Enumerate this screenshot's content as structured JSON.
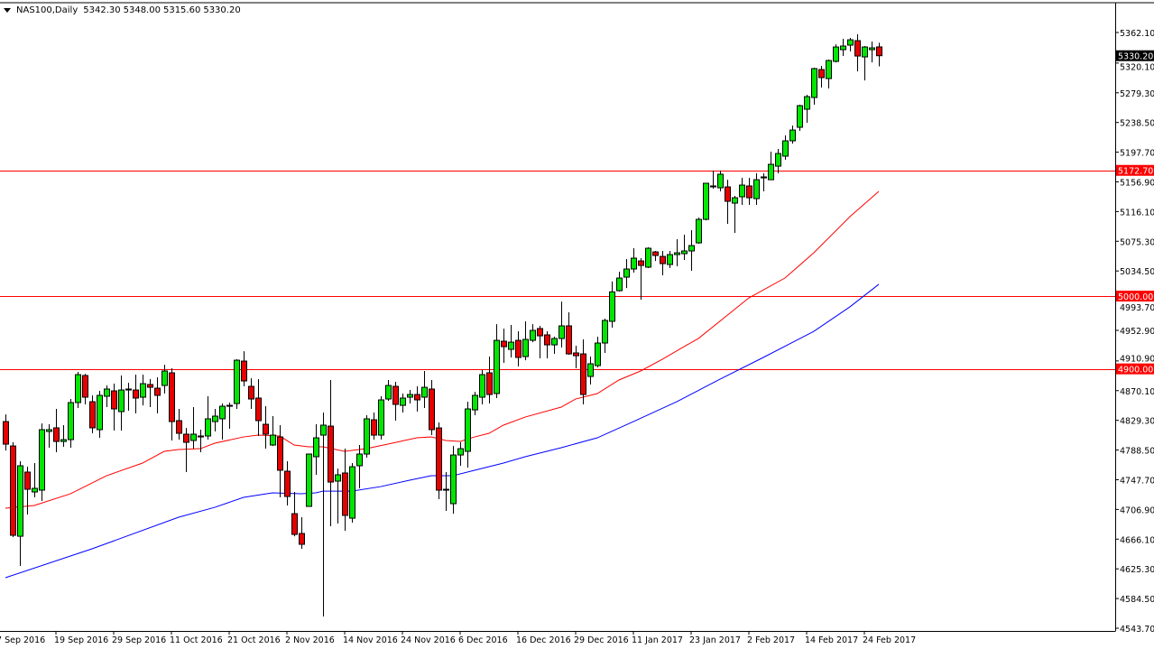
{
  "header": {
    "symbol_timeframe": "NAS100,Daily",
    "open": "5342.30",
    "high": "5348.00",
    "low": "5315.60",
    "close": "5330.20"
  },
  "colors": {
    "bull": "#00e600",
    "bear": "#e60000",
    "ma_fast": "#ff0000",
    "ma_slow": "#0000ff",
    "hline": "#ff0000",
    "price_label_bg": "#000000"
  },
  "chart_data": {
    "type": "candlestick",
    "title": "NAS100,Daily",
    "ylim": [
      4543.7,
      5362.1
    ],
    "y_ticks": [
      "5362.10",
      "5320.10",
      "5279.30",
      "5238.50",
      "5197.70",
      "5156.90",
      "5116.10",
      "5075.30",
      "5034.50",
      "4993.70",
      "4952.90",
      "4910.90",
      "4870.10",
      "4829.30",
      "4788.50",
      "4747.70",
      "4706.90",
      "4666.10",
      "4625.30",
      "4584.50",
      "4543.70"
    ],
    "x_ticks": [
      {
        "bar": -1,
        "label": "7 Sep 2016"
      },
      {
        "bar": 7,
        "label": "19 Sep 2016"
      },
      {
        "bar": 15,
        "label": "29 Sep 2016"
      },
      {
        "bar": 23,
        "label": "11 Oct 2016"
      },
      {
        "bar": 31,
        "label": "21 Oct 2016"
      },
      {
        "bar": 39,
        "label": "2 Nov 2016"
      },
      {
        "bar": 47,
        "label": "14 Nov 2016"
      },
      {
        "bar": 55,
        "label": "24 Nov 2016"
      },
      {
        "bar": 63,
        "label": "6 Dec 2016"
      },
      {
        "bar": 71,
        "label": "16 Dec 2016"
      },
      {
        "bar": 79,
        "label": "29 Dec 2016"
      },
      {
        "bar": 87,
        "label": "11 Jan 2017"
      },
      {
        "bar": 95,
        "label": "23 Jan 2017"
      },
      {
        "bar": 103,
        "label": "2 Feb 2017"
      },
      {
        "bar": 111,
        "label": "14 Feb 2017"
      },
      {
        "bar": 119,
        "label": "24 Feb 2017"
      }
    ],
    "ohlc_fields": [
      "open",
      "high",
      "low",
      "close"
    ],
    "candles": [
      [
        4827.6,
        4837.5,
        4787.9,
        4796.6
      ],
      [
        4794.1,
        4799.1,
        4668.9,
        4671.4
      ],
      [
        4670.1,
        4773.1,
        4629.2,
        4766.9
      ],
      [
        4758.2,
        4765.6,
        4699.9,
        4734.6
      ],
      [
        4730.9,
        4770.6,
        4723.5,
        4735.9
      ],
      [
        4733.4,
        4825.1,
        4718.5,
        4816.5
      ],
      [
        4814.0,
        4823.9,
        4791.7,
        4816.5
      ],
      [
        4819.0,
        4845.0,
        4785.5,
        4800.3
      ],
      [
        4800.3,
        4822.7,
        4792.9,
        4802.8
      ],
      [
        4802.8,
        4858.6,
        4791.7,
        4853.7
      ],
      [
        4853.7,
        4895.8,
        4846.2,
        4892.1
      ],
      [
        4890.9,
        4893.3,
        4851.2,
        4861.1
      ],
      [
        4854.9,
        4863.6,
        4811.5,
        4819.0
      ],
      [
        4816.5,
        4869.8,
        4805.3,
        4863.6
      ],
      [
        4862.4,
        4877.2,
        4847.5,
        4872.3
      ],
      [
        4869.8,
        4879.7,
        4815.2,
        4845.0
      ],
      [
        4841.3,
        4890.9,
        4815.2,
        4871.0
      ],
      [
        4871.0,
        4880.9,
        4842.5,
        4872.3
      ],
      [
        4871.0,
        4892.1,
        4838.8,
        4859.9
      ],
      [
        4861.1,
        4892.1,
        4849.9,
        4879.7
      ],
      [
        4878.5,
        4885.9,
        4847.5,
        4874.7
      ],
      [
        4873.5,
        4888.4,
        4838.8,
        4863.6
      ],
      [
        4877.2,
        4905.7,
        4866.1,
        4897.1
      ],
      [
        4894.6,
        4900.8,
        4801.6,
        4827.6
      ],
      [
        4828.9,
        4845.0,
        4802.8,
        4811.5
      ],
      [
        4810.3,
        4818.9,
        4758.2,
        4799.1
      ],
      [
        4801.6,
        4847.5,
        4790.4,
        4810.3
      ],
      [
        4807.8,
        4816.5,
        4785.5,
        4806.5
      ],
      [
        4807.8,
        4862.4,
        4802.8,
        4831.4
      ],
      [
        4827.6,
        4845.0,
        4814.0,
        4835.1
      ],
      [
        4831.4,
        4852.4,
        4802.8,
        4848.7
      ],
      [
        4848.7,
        4853.7,
        4817.7,
        4849.9
      ],
      [
        4852.4,
        4913.2,
        4845.0,
        4911.9
      ],
      [
        4910.7,
        4924.3,
        4876.0,
        4883.4
      ],
      [
        4876.0,
        4887.1,
        4845.0,
        4858.6
      ],
      [
        4859.9,
        4885.9,
        4807.8,
        4828.9
      ],
      [
        4823.9,
        4848.7,
        4790.4,
        4810.3
      ],
      [
        4795.4,
        4835.1,
        4794.1,
        4809.0
      ],
      [
        4806.5,
        4822.7,
        4723.5,
        4760.7
      ],
      [
        4759.4,
        4773.1,
        4712.3,
        4724.7
      ],
      [
        4701.1,
        4730.9,
        4670.1,
        4672.6
      ],
      [
        4673.9,
        4696.2,
        4652.8,
        4659.0
      ],
      [
        4711.1,
        4783.0,
        4711.1,
        4783.0
      ],
      [
        4779.3,
        4823.9,
        4754.5,
        4805.3
      ],
      [
        4809.0,
        4840.0,
        4559.8,
        4822.7
      ],
      [
        4821.4,
        4884.7,
        4683.8,
        4744.5
      ],
      [
        4745.8,
        4763.1,
        4687.5,
        4754.5
      ],
      [
        4757.0,
        4790.4,
        4677.6,
        4698.7
      ],
      [
        4694.9,
        4770.6,
        4688.7,
        4765.6
      ],
      [
        4766.9,
        4795.4,
        4735.9,
        4783.0
      ],
      [
        4783.0,
        4836.3,
        4778.0,
        4831.4
      ],
      [
        4830.1,
        4840.0,
        4802.8,
        4809.0
      ],
      [
        4809.0,
        4862.4,
        4802.8,
        4857.4
      ],
      [
        4858.6,
        4884.7,
        4856.1,
        4877.2
      ],
      [
        4876.0,
        4882.2,
        4828.9,
        4851.2
      ],
      [
        4849.9,
        4866.1,
        4840.0,
        4859.9
      ],
      [
        4861.1,
        4871.0,
        4852.4,
        4864.8
      ],
      [
        4864.8,
        4876.0,
        4841.3,
        4857.4
      ],
      [
        4861.1,
        4897.1,
        4846.2,
        4874.7
      ],
      [
        4872.3,
        4884.7,
        4809.0,
        4816.5
      ],
      [
        4818.9,
        4826.4,
        4721.0,
        4733.4
      ],
      [
        4734.6,
        4758.2,
        4704.9,
        4733.4
      ],
      [
        4714.8,
        4794.1,
        4701.1,
        4781.7
      ],
      [
        4781.7,
        4799.1,
        4766.9,
        4790.4
      ],
      [
        4786.7,
        4854.9,
        4764.4,
        4845.0
      ],
      [
        4843.7,
        4868.5,
        4836.3,
        4863.6
      ],
      [
        4861.1,
        4898.3,
        4851.2,
        4892.1
      ],
      [
        4894.6,
        4916.9,
        4852.4,
        4864.8
      ],
      [
        4866.1,
        4961.5,
        4859.9,
        4939.2
      ],
      [
        4938.0,
        4955.3,
        4908.2,
        4930.5
      ],
      [
        4926.8,
        4960.3,
        4915.7,
        4936.7
      ],
      [
        4939.2,
        4951.6,
        4903.3,
        4915.7
      ],
      [
        4916.9,
        4965.3,
        4911.9,
        4940.5
      ],
      [
        4939.2,
        4961.5,
        4936.7,
        4952.9
      ],
      [
        4955.4,
        4959.1,
        4914.4,
        4945.4
      ],
      [
        4946.7,
        4951.6,
        4914.4,
        4933.0
      ],
      [
        4933.0,
        4944.2,
        4920.6,
        4941.7
      ],
      [
        4941.7,
        4992.5,
        4929.3,
        4959.1
      ],
      [
        4959.1,
        4977.7,
        4919.4,
        4920.6
      ],
      [
        4921.9,
        4931.8,
        4900.8,
        4918.1
      ],
      [
        4920.6,
        4940.5,
        4851.2,
        4864.8
      ],
      [
        4889.6,
        4916.9,
        4878.5,
        4907.0
      ],
      [
        4904.5,
        4944.2,
        4902.0,
        4935.5
      ],
      [
        4935.5,
        4969.0,
        4921.9,
        4966.5
      ],
      [
        4965.3,
        5020.1,
        4956.6,
        5005.8
      ],
      [
        5007.4,
        5033.5,
        5006.2,
        5024.8
      ],
      [
        5026.0,
        5050.8,
        5011.1,
        5037.2
      ],
      [
        5037.2,
        5065.7,
        5032.2,
        5052.1
      ],
      [
        5048.3,
        5052.1,
        4995.0,
        5042.1
      ],
      [
        5039.7,
        5067.0,
        5038.4,
        5065.7
      ],
      [
        5060.7,
        5062.0,
        5048.3,
        5055.8
      ],
      [
        5054.5,
        5062.0,
        5028.5,
        5044.6
      ],
      [
        5043.4,
        5062.0,
        5038.4,
        5057.0
      ],
      [
        5057.0,
        5078.1,
        5040.9,
        5059.5
      ],
      [
        5058.3,
        5084.3,
        5049.6,
        5062.0
      ],
      [
        5062.0,
        5090.5,
        5034.7,
        5069.4
      ],
      [
        5073.1,
        5107.9,
        5071.9,
        5105.4
      ],
      [
        5105.4,
        5155.0,
        5104.1,
        5155.0
      ],
      [
        5151.3,
        5172.3,
        5147.5,
        5150.0
      ],
      [
        5148.8,
        5172.3,
        5143.8,
        5167.4
      ],
      [
        5150.0,
        5159.9,
        5099.2,
        5130.2
      ],
      [
        5127.7,
        5137.6,
        5086.8,
        5135.1
      ],
      [
        5136.4,
        5162.4,
        5125.2,
        5152.5
      ],
      [
        5151.3,
        5162.4,
        5125.2,
        5135.1
      ],
      [
        5133.9,
        5168.6,
        5125.2,
        5159.9
      ],
      [
        5163.7,
        5168.6,
        5143.8,
        5162.4
      ],
      [
        5159.9,
        5198.4,
        5159.9,
        5181.0
      ],
      [
        5178.5,
        5202.1,
        5168.6,
        5195.9
      ],
      [
        5192.2,
        5220.7,
        5187.2,
        5213.3
      ],
      [
        5213.3,
        5234.3,
        5209.5,
        5228.1
      ],
      [
        5231.9,
        5262.9,
        5226.9,
        5261.6
      ],
      [
        5256.7,
        5276.5,
        5238.1,
        5274.0
      ],
      [
        5272.8,
        5313.7,
        5262.9,
        5312.5
      ],
      [
        5311.2,
        5316.2,
        5286.4,
        5300.1
      ],
      [
        5298.8,
        5324.9,
        5285.2,
        5323.6
      ],
      [
        5322.4,
        5345.9,
        5321.1,
        5342.2
      ],
      [
        5338.5,
        5353.4,
        5329.8,
        5343.5
      ],
      [
        5344.7,
        5354.6,
        5336.0,
        5352.1
      ],
      [
        5350.9,
        5359.6,
        5308.7,
        5329.8
      ],
      [
        5328.6,
        5343.5,
        5296.3,
        5342.2
      ],
      [
        5338.5,
        5349.7,
        5321.1,
        5341.0
      ],
      [
        5342.3,
        5348.0,
        5315.6,
        5330.2
      ]
    ],
    "series": [
      {
        "name": "MA fast (red)",
        "color": "#ff0000",
        "points": [
          [
            0,
            4708.6
          ],
          [
            4,
            4712.3
          ],
          [
            9,
            4728.4
          ],
          [
            12,
            4743.3
          ],
          [
            14,
            4753.2
          ],
          [
            19,
            4770.6
          ],
          [
            22,
            4786.7
          ],
          [
            24,
            4789.2
          ],
          [
            27,
            4790.4
          ],
          [
            29,
            4797.9
          ],
          [
            33,
            4806.5
          ],
          [
            35,
            4809.0
          ],
          [
            38,
            4807.8
          ],
          [
            40,
            4795.4
          ],
          [
            42,
            4792.9
          ],
          [
            44,
            4792.9
          ],
          [
            47,
            4786.7
          ],
          [
            50,
            4790.4
          ],
          [
            53,
            4796.6
          ],
          [
            57,
            4805.3
          ],
          [
            59,
            4806.5
          ],
          [
            61,
            4801.6
          ],
          [
            63,
            4800.3
          ],
          [
            65,
            4806.5
          ],
          [
            67,
            4811.5
          ],
          [
            69,
            4822.7
          ],
          [
            72,
            4833.8
          ],
          [
            77,
            4847.5
          ],
          [
            79,
            4858.6
          ],
          [
            82,
            4866.1
          ],
          [
            85,
            4884.7
          ],
          [
            88,
            4897.1
          ],
          [
            91,
            4913.2
          ],
          [
            94,
            4930.5
          ],
          [
            96,
            4941.7
          ],
          [
            103,
            4997.5
          ],
          [
            108,
            5024.8
          ],
          [
            112,
            5059.5
          ],
          [
            117,
            5109.1
          ],
          [
            121,
            5143.8
          ]
        ]
      },
      {
        "name": "MA slow (blue)",
        "color": "#0000ff",
        "points": [
          [
            0,
            4613.1
          ],
          [
            12,
            4652.8
          ],
          [
            24,
            4696.2
          ],
          [
            29,
            4709.8
          ],
          [
            33,
            4723.5
          ],
          [
            37,
            4729.7
          ],
          [
            41,
            4728.4
          ],
          [
            43,
            4729.7
          ],
          [
            44,
            4732.1
          ],
          [
            48,
            4732.1
          ],
          [
            52,
            4738.3
          ],
          [
            56,
            4747.0
          ],
          [
            59,
            4753.2
          ],
          [
            62,
            4753.2
          ],
          [
            65,
            4760.7
          ],
          [
            69,
            4770.6
          ],
          [
            72,
            4779.3
          ],
          [
            77,
            4791.7
          ],
          [
            82,
            4805.3
          ],
          [
            87,
            4827.6
          ],
          [
            93,
            4854.9
          ],
          [
            99,
            4885.9
          ],
          [
            105,
            4915.7
          ],
          [
            112,
            4951.6
          ],
          [
            117,
            4985.2
          ],
          [
            121,
            5016.2
          ]
        ]
      }
    ],
    "horizontal_lines": [
      {
        "value": 5172.7,
        "label": "5172.70"
      },
      {
        "value": 5000.0,
        "label": "5000.00"
      },
      {
        "value": 4900.0,
        "label": "4900.00"
      }
    ],
    "current_price": {
      "value": 5330.2,
      "label": "5330.20"
    }
  }
}
